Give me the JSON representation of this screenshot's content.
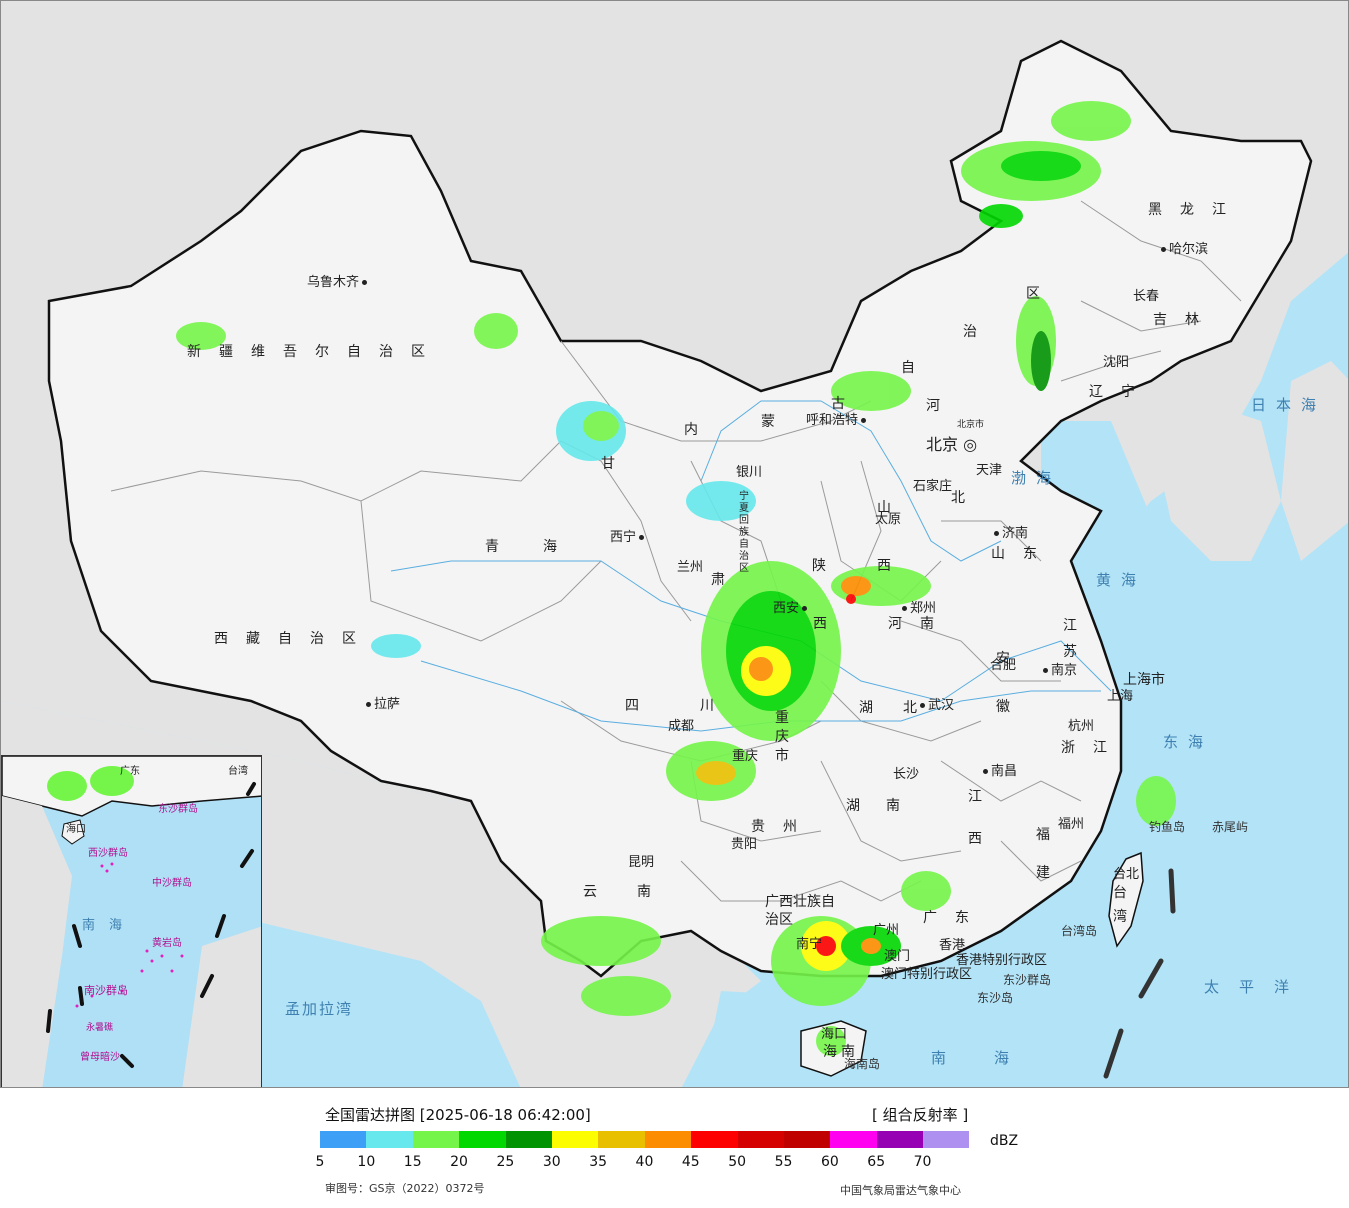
{
  "map": {
    "colors": {
      "sea": "#b3e3f7",
      "land": "#f4f4f4",
      "neighbor": "#e3e3e3",
      "border": "#111111",
      "province_border": "#9a9a9a"
    },
    "cities": [
      {
        "id": "urumqi",
        "name": "乌鲁木齐"
      },
      {
        "id": "lhasa",
        "name": "拉萨"
      },
      {
        "id": "xining",
        "name": "西宁"
      },
      {
        "id": "lanzhou",
        "name": "兰州"
      },
      {
        "id": "yinchuan",
        "name": "银川"
      },
      {
        "id": "hohhot",
        "name": "呼和浩特"
      },
      {
        "id": "beijing",
        "name": "北京"
      },
      {
        "id": "beijing_city",
        "name": "北京市"
      },
      {
        "id": "tianjin",
        "name": "天津"
      },
      {
        "id": "shijiazhuang",
        "name": "石家庄"
      },
      {
        "id": "taiyuan",
        "name": "太原"
      },
      {
        "id": "jinan",
        "name": "济南"
      },
      {
        "id": "zhengzhou",
        "name": "郑州"
      },
      {
        "id": "xian",
        "name": "西安"
      },
      {
        "id": "chengdu",
        "name": "成都"
      },
      {
        "id": "chongqing",
        "name": "重庆"
      },
      {
        "id": "guiyang",
        "name": "贵阳"
      },
      {
        "id": "kunming",
        "name": "昆明"
      },
      {
        "id": "nanning",
        "name": "南宁"
      },
      {
        "id": "guangzhou",
        "name": "广州"
      },
      {
        "id": "hongkong",
        "name": "香港"
      },
      {
        "id": "macau",
        "name": "澳门"
      },
      {
        "id": "haikou",
        "name": "海口"
      },
      {
        "id": "changsha",
        "name": "长沙"
      },
      {
        "id": "wuhan",
        "name": "武汉"
      },
      {
        "id": "nanchang",
        "name": "南昌"
      },
      {
        "id": "fuzhou",
        "name": "福州"
      },
      {
        "id": "taibei",
        "name": "台北"
      },
      {
        "id": "hangzhou",
        "name": "杭州"
      },
      {
        "id": "shanghai",
        "name": "上海"
      },
      {
        "id": "nanjing",
        "name": "南京"
      },
      {
        "id": "hefei",
        "name": "合肥"
      },
      {
        "id": "shenyang",
        "name": "沈阳"
      },
      {
        "id": "changchun",
        "name": "长春"
      },
      {
        "id": "harbin",
        "name": "哈尔滨"
      }
    ],
    "provinces": [
      {
        "id": "xinjiang",
        "name": "新疆维吾尔自治区"
      },
      {
        "id": "xizang",
        "name": "西藏自治区"
      },
      {
        "id": "qinghai",
        "name": "青海"
      },
      {
        "id": "gansu",
        "name": "甘"
      },
      {
        "id": "gansu2",
        "name": "肃"
      },
      {
        "id": "ningxia",
        "name": "宁夏回族自治区"
      },
      {
        "id": "neimenggu1",
        "name": "内"
      },
      {
        "id": "neimenggu2",
        "name": "蒙"
      },
      {
        "id": "neimenggu3",
        "name": "古"
      },
      {
        "id": "neimenggu4",
        "name": "自"
      },
      {
        "id": "neimenggu5",
        "name": "治"
      },
      {
        "id": "neimenggu6",
        "name": "区"
      },
      {
        "id": "heilongjiang",
        "name": "黑龙江"
      },
      {
        "id": "jilin",
        "name": "吉林"
      },
      {
        "id": "liaoning",
        "name": "辽宁"
      },
      {
        "id": "hebei1",
        "name": "河"
      },
      {
        "id": "hebei2",
        "name": "北"
      },
      {
        "id": "shanxi",
        "name": "山西"
      },
      {
        "id": "shandong",
        "name": "山东"
      },
      {
        "id": "henan",
        "name": "河南"
      },
      {
        "id": "shaanxi1",
        "name": "陕"
      },
      {
        "id": "shaanxi2",
        "name": "西"
      },
      {
        "id": "sichuan1",
        "name": "四"
      },
      {
        "id": "sichuan2",
        "name": "川"
      },
      {
        "id": "chongqingshi",
        "name": "重庆市"
      },
      {
        "id": "guizhou",
        "name": "贵州"
      },
      {
        "id": "yunnan",
        "name": "云南"
      },
      {
        "id": "guangxi",
        "name": "广西壮族自治区"
      },
      {
        "id": "guangdong",
        "name": "广东"
      },
      {
        "id": "hunan",
        "name": "湖南"
      },
      {
        "id": "hubei",
        "name": "湖北"
      },
      {
        "id": "jiangxi",
        "name": "江西"
      },
      {
        "id": "fujian",
        "name": "福建"
      },
      {
        "id": "zhejiang",
        "name": "浙江"
      },
      {
        "id": "jiangsu",
        "name": "江苏"
      },
      {
        "id": "anhui",
        "name": "安徽"
      },
      {
        "id": "shanghaishi",
        "name": "上海市"
      },
      {
        "id": "taiwan",
        "name": "台湾"
      },
      {
        "id": "hainan",
        "name": "海南"
      },
      {
        "id": "hk_sar",
        "name": "香港特别行政区"
      },
      {
        "id": "macau_sar",
        "name": "澳门特别行政区"
      }
    ],
    "seas": [
      {
        "id": "riben",
        "name": "日本海"
      },
      {
        "id": "bohai",
        "name": "渤海"
      },
      {
        "id": "huanghai",
        "name": "黄海"
      },
      {
        "id": "donghai",
        "name": "东海"
      },
      {
        "id": "taipingyang",
        "name": "太平洋"
      },
      {
        "id": "nanhai",
        "name": "南海"
      },
      {
        "id": "mengjiala",
        "name": "孟加拉湾"
      }
    ],
    "islands": [
      {
        "id": "diaoyu",
        "name": "钓鱼岛"
      },
      {
        "id": "chiwei",
        "name": "赤尾屿"
      },
      {
        "id": "dongsha",
        "name": "东沙群岛"
      },
      {
        "id": "dongshadao",
        "name": "东沙岛"
      },
      {
        "id": "taiwandao",
        "name": "台湾岛"
      },
      {
        "id": "hainandao",
        "name": "海南岛"
      }
    ],
    "inset": {
      "labels": [
        {
          "id": "i_nanhai",
          "name": "南海"
        },
        {
          "id": "i_nansha",
          "name": "南沙群岛"
        },
        {
          "id": "i_xisha",
          "name": "西沙群岛"
        },
        {
          "id": "i_zhongsha",
          "name": "中沙群岛"
        },
        {
          "id": "i_zengmu",
          "name": "曾母暗沙"
        },
        {
          "id": "i_haikou",
          "name": "海口"
        },
        {
          "id": "i_dongsha",
          "name": "东沙群岛"
        },
        {
          "id": "i_taiwan",
          "name": "台湾"
        },
        {
          "id": "i_guangdong",
          "name": "广东"
        },
        {
          "id": "i_yongshu",
          "name": "永暑礁"
        },
        {
          "id": "i_huangyan",
          "name": "黄岩岛"
        }
      ]
    }
  },
  "legend": {
    "title": "全国雷达拼图 [2025-06-18 06:42:00]",
    "product": "[ 组合反射率 ]",
    "unit": "dBZ",
    "colors": [
      "#3d9ff5",
      "#66e8ec",
      "#75f54a",
      "#01d801",
      "#029302",
      "#fdfd01",
      "#e8c000",
      "#fc8c00",
      "#fd0000",
      "#d50000",
      "#c00000",
      "#ff00f1",
      "#9701b4",
      "#ad90f0"
    ],
    "ticks": [
      "5",
      "10",
      "15",
      "20",
      "25",
      "30",
      "35",
      "40",
      "45",
      "50",
      "55",
      "60",
      "65",
      "70"
    ],
    "approval": "审图号：GS京（2022）0372号",
    "credit": "中国气象局雷达气象中心"
  }
}
